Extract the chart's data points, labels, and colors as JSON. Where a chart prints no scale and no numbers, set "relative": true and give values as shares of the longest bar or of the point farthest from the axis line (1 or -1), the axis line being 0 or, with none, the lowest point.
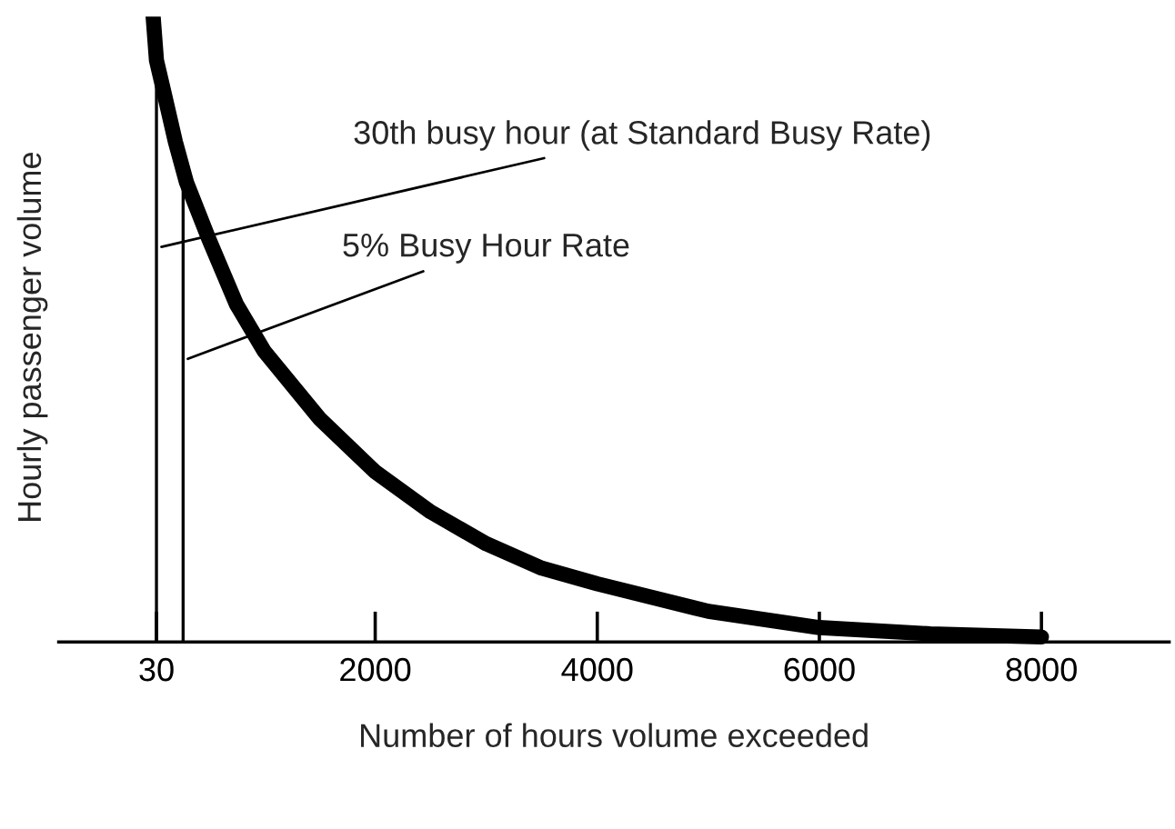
{
  "chart_data": {
    "type": "line",
    "relative": true,
    "xlabel": "Number of hours volume exceeded",
    "ylabel": "Hourly passenger volume",
    "xlim": [
      -850,
      9150
    ],
    "xticks": [
      30,
      2000,
      4000,
      6000,
      8000
    ],
    "series": [
      {
        "color": "#000000",
        "x": [
          0,
          30,
          100,
          200,
          300,
          500,
          750,
          1000,
          1500,
          2000,
          2500,
          3000,
          3500,
          4000,
          5000,
          6000,
          7000,
          8000
        ],
        "values": [
          1.0,
          0.93,
          0.877,
          0.8,
          0.735,
          0.645,
          0.54,
          0.465,
          0.357,
          0.272,
          0.208,
          0.157,
          0.118,
          0.093,
          0.049,
          0.023,
          0.013,
          0.008
        ]
      }
    ],
    "ref_lines": [
      {
        "axis": "x",
        "value": 30,
        "label": "30th busy hour (at Standard Busy Rate)",
        "color": "#000000"
      },
      {
        "axis": "x",
        "value": 270,
        "label": "5% Busy Hour Rate",
        "color": "#000000"
      }
    ],
    "grid": false,
    "legend": false,
    "marker": "none",
    "line_style": "solid"
  }
}
